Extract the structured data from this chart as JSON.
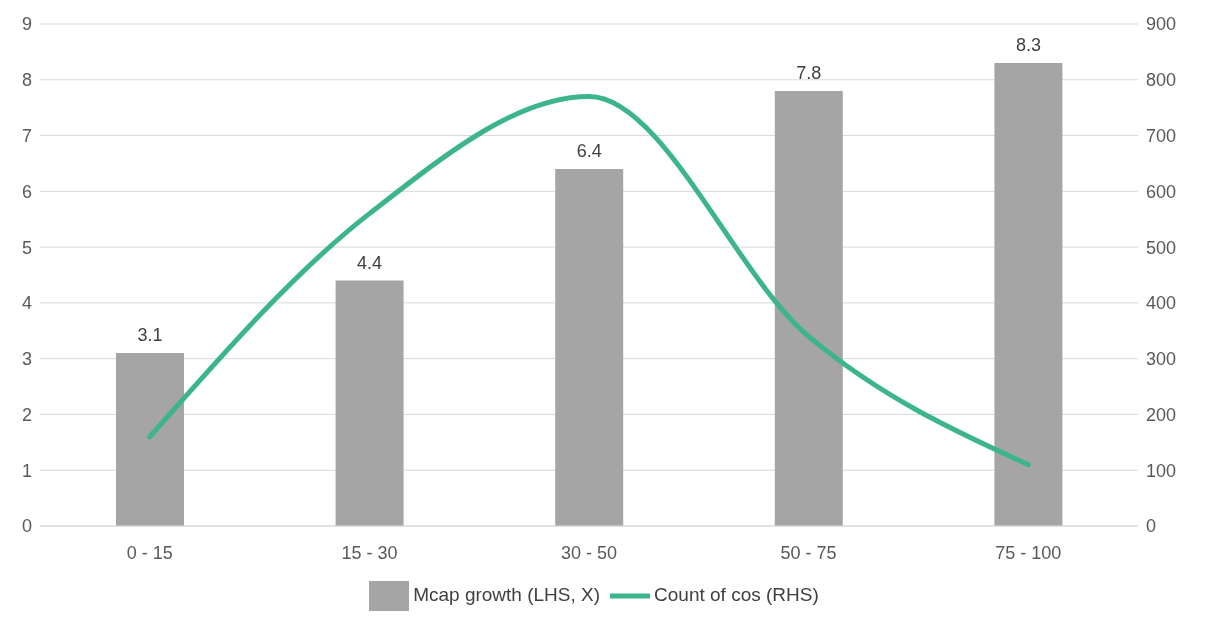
{
  "chart_data": {
    "type": "bar",
    "categories": [
      "0 - 15",
      "15 - 30",
      "30 - 50",
      "50 - 75",
      "75 - 100"
    ],
    "series": [
      {
        "name": "Mcap growth (LHS, X)",
        "color": "#a5a5a5",
        "values": [
          3.1,
          4.4,
          6.4,
          7.8,
          8.3
        ],
        "value_labels": [
          "3.1",
          "4.4",
          "6.4",
          "7.8",
          "8.3"
        ]
      },
      {
        "name": "Count of cos (RHS)",
        "type": "line",
        "axis": "y2",
        "color": "#3cb48c",
        "values": [
          160,
          560,
          770,
          340,
          110
        ]
      }
    ],
    "ylim": [
      0,
      9
    ],
    "yticks": [
      0,
      1,
      2,
      3,
      4,
      5,
      6,
      7,
      8,
      9
    ],
    "y2lim": [
      0,
      900
    ],
    "y2ticks": [
      0,
      100,
      200,
      300,
      400,
      500,
      600,
      700,
      800,
      900
    ],
    "grid": "y",
    "legend": "bottom",
    "marker": "none",
    "line_style": "solid"
  }
}
